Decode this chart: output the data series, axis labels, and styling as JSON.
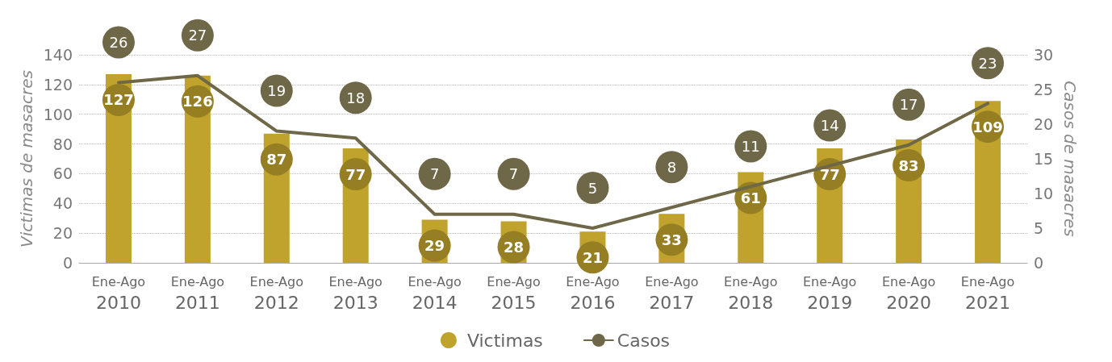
{
  "chart_data": {
    "type": "bar",
    "categories": [
      "Ene-Ago\n2010",
      "Ene-Ago\n2011",
      "Ene-Ago\n2012",
      "Ene-Ago\n2013",
      "Ene-Ago\n2014",
      "Ene-Ago\n2015",
      "Ene-Ago\n2016",
      "Ene-Ago\n2017",
      "Ene-Ago\n2018",
      "Ene-Ago\n2019",
      "Ene-Ago\n2020",
      "Ene-Ago\n2021"
    ],
    "series": [
      {
        "name": "Victimas",
        "color": "#bfa32c",
        "values": [
          127,
          126,
          87,
          77,
          29,
          28,
          21,
          33,
          61,
          77,
          83,
          109
        ]
      },
      {
        "name": "Casos",
        "type": "line",
        "axis": "y2",
        "color": "#6e6848",
        "values": [
          26,
          27,
          19,
          18,
          7,
          7,
          5,
          8,
          11,
          14,
          17,
          23
        ]
      }
    ],
    "ylabel": "Victimas de masacres",
    "y2label": "Casos de masacres",
    "ylim": [
      0,
      140
    ],
    "yticks": [
      0,
      20,
      40,
      60,
      80,
      100,
      120,
      140
    ],
    "y2lim": [
      0,
      30
    ],
    "y2ticks": [
      0,
      5,
      10,
      15,
      20,
      25,
      30
    ],
    "grid": "y",
    "legend": "bottom",
    "data_labels": true,
    "marker": "none",
    "line_style": "solid"
  }
}
